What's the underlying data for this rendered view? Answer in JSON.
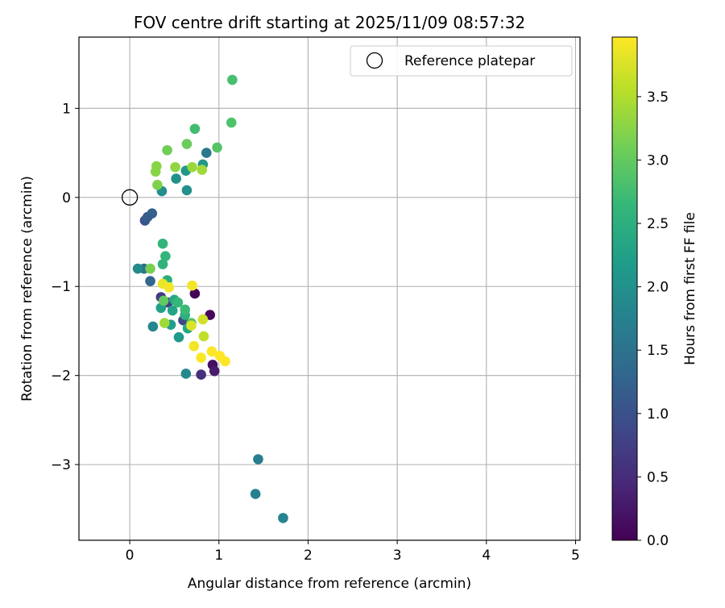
{
  "chart_data": {
    "type": "scatter",
    "title": "FOV centre drift starting at 2025/11/09 08:57:32",
    "xlabel": "Angular distance from reference (arcmin)",
    "ylabel": "Rotation from reference (arcmin)",
    "xlim": [
      -0.57,
      5.05
    ],
    "ylim": [
      -3.85,
      1.8
    ],
    "xticks": [
      0,
      1,
      2,
      3,
      4,
      5
    ],
    "yticks": [
      -3,
      -2,
      -1,
      0,
      1
    ],
    "grid": true,
    "legend": {
      "position": "top-right",
      "entries": [
        "Reference platepar"
      ]
    },
    "reference_point": {
      "label": "Reference platepar",
      "x": 0,
      "y": 0,
      "marker": "open-circle",
      "color": "#000000"
    },
    "colorbar": {
      "label": "Hours from first FF file",
      "range": [
        0,
        3.97
      ],
      "ticks": [
        0.0,
        0.5,
        1.0,
        1.5,
        2.0,
        2.5,
        3.0,
        3.5
      ],
      "tick_labels": [
        "0.0",
        "0.5",
        "1.0",
        "1.5",
        "2.0",
        "2.5",
        "3.0",
        "3.5"
      ],
      "colormap": "viridis",
      "colormap_stops": [
        "#440154",
        "#482878",
        "#3e4989",
        "#31688e",
        "#26828e",
        "#1f9e89",
        "#35b779",
        "#6ece58",
        "#b5de2b",
        "#fde725"
      ]
    },
    "series": [
      {
        "name": "FOV centre drift",
        "points": [
          {
            "x": 0.73,
            "y": -1.08,
            "h": 0.05
          },
          {
            "x": 0.9,
            "y": -1.32,
            "h": 0.1
          },
          {
            "x": 0.93,
            "y": -1.88,
            "h": 0.15
          },
          {
            "x": 0.95,
            "y": -1.95,
            "h": 0.3
          },
          {
            "x": 0.8,
            "y": -1.99,
            "h": 0.55
          },
          {
            "x": 0.35,
            "y": -1.12,
            "h": 0.7
          },
          {
            "x": 0.43,
            "y": -1.18,
            "h": 0.8
          },
          {
            "x": 0.6,
            "y": -1.38,
            "h": 0.85
          },
          {
            "x": 0.17,
            "y": -0.26,
            "h": 1.05
          },
          {
            "x": 0.2,
            "y": -0.22,
            "h": 1.15
          },
          {
            "x": 0.25,
            "y": -0.18,
            "h": 1.2
          },
          {
            "x": 0.23,
            "y": -0.94,
            "h": 1.3
          },
          {
            "x": 0.16,
            "y": -0.8,
            "h": 1.5
          },
          {
            "x": 0.86,
            "y": 0.5,
            "h": 1.6
          },
          {
            "x": 1.44,
            "y": -2.94,
            "h": 1.7
          },
          {
            "x": 1.41,
            "y": -3.33,
            "h": 1.75
          },
          {
            "x": 1.72,
            "y": -3.6,
            "h": 1.8
          },
          {
            "x": 0.26,
            "y": -1.45,
            "h": 1.85
          },
          {
            "x": 0.63,
            "y": -1.98,
            "h": 1.85
          },
          {
            "x": 0.09,
            "y": -0.8,
            "h": 1.9
          },
          {
            "x": 0.36,
            "y": 0.07,
            "h": 1.95
          },
          {
            "x": 0.52,
            "y": 0.21,
            "h": 2.0
          },
          {
            "x": 0.64,
            "y": 0.08,
            "h": 2.0
          },
          {
            "x": 0.63,
            "y": 0.3,
            "h": 2.1
          },
          {
            "x": 0.82,
            "y": 0.37,
            "h": 2.1
          },
          {
            "x": 0.55,
            "y": -1.57,
            "h": 2.15
          },
          {
            "x": 0.46,
            "y": -1.43,
            "h": 2.2
          },
          {
            "x": 0.35,
            "y": -1.24,
            "h": 2.25
          },
          {
            "x": 0.48,
            "y": -1.27,
            "h": 2.3
          },
          {
            "x": 0.65,
            "y": -1.47,
            "h": 2.35
          },
          {
            "x": 0.5,
            "y": -1.15,
            "h": 2.4
          },
          {
            "x": 0.42,
            "y": -0.93,
            "h": 2.45
          },
          {
            "x": 0.62,
            "y": -1.32,
            "h": 2.5
          },
          {
            "x": 0.37,
            "y": -0.75,
            "h": 2.55
          },
          {
            "x": 0.4,
            "y": -0.66,
            "h": 2.6
          },
          {
            "x": 0.37,
            "y": -0.52,
            "h": 2.6
          },
          {
            "x": 0.54,
            "y": -1.18,
            "h": 2.65
          },
          {
            "x": 0.62,
            "y": -1.26,
            "h": 2.7
          },
          {
            "x": 0.73,
            "y": 0.77,
            "h": 2.75
          },
          {
            "x": 1.15,
            "y": 1.32,
            "h": 2.8
          },
          {
            "x": 1.14,
            "y": 0.84,
            "h": 2.85
          },
          {
            "x": 0.98,
            "y": 0.56,
            "h": 2.9
          },
          {
            "x": 0.69,
            "y": -1.41,
            "h": 2.9
          },
          {
            "x": 0.38,
            "y": -1.16,
            "h": 3.0
          },
          {
            "x": 0.64,
            "y": 0.6,
            "h": 3.05
          },
          {
            "x": 0.42,
            "y": 0.53,
            "h": 3.1
          },
          {
            "x": 0.23,
            "y": -0.8,
            "h": 3.15
          },
          {
            "x": 0.31,
            "y": 0.14,
            "h": 3.2
          },
          {
            "x": 0.3,
            "y": 0.35,
            "h": 3.25
          },
          {
            "x": 0.29,
            "y": 0.29,
            "h": 3.25
          },
          {
            "x": 0.51,
            "y": 0.34,
            "h": 3.3
          },
          {
            "x": 0.7,
            "y": 0.34,
            "h": 3.35
          },
          {
            "x": 0.81,
            "y": 0.31,
            "h": 3.4
          },
          {
            "x": 0.39,
            "y": -1.41,
            "h": 3.4
          },
          {
            "x": 0.83,
            "y": -1.56,
            "h": 3.6
          },
          {
            "x": 0.82,
            "y": -1.37,
            "h": 3.7
          },
          {
            "x": 0.69,
            "y": -1.44,
            "h": 3.75
          },
          {
            "x": 0.37,
            "y": -0.97,
            "h": 3.85
          },
          {
            "x": 0.44,
            "y": -1.01,
            "h": 3.9
          },
          {
            "x": 0.7,
            "y": -0.99,
            "h": 3.9
          },
          {
            "x": 0.72,
            "y": -1.67,
            "h": 3.9
          },
          {
            "x": 0.8,
            "y": -1.8,
            "h": 3.95
          },
          {
            "x": 0.92,
            "y": -1.73,
            "h": 3.95
          },
          {
            "x": 1.01,
            "y": -1.78,
            "h": 3.97
          },
          {
            "x": 1.07,
            "y": -1.84,
            "h": 3.97
          }
        ]
      }
    ]
  }
}
